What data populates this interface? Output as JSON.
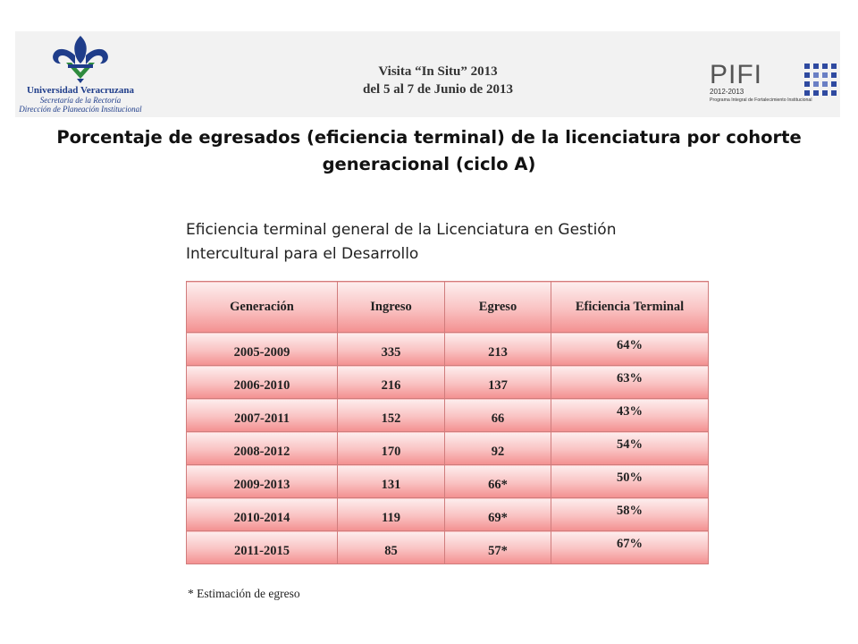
{
  "header": {
    "university": {
      "name": "Universidad Veracruzana",
      "line2": "Secretaría de la Rectoría",
      "line3": "Dirección de Planeación Institucional"
    },
    "visit_title": "Visita “In Situ” 2013",
    "visit_dates": "del 5 al 7 de Junio de 2013",
    "pifi": {
      "word": "PIFI",
      "years": "2012-2013",
      "program": "Programa Integral de Fortalecimiento Institucional"
    }
  },
  "title": "Porcentaje de egresados (eficiencia terminal) de la licenciatura por cohorte generacional (ciclo A)",
  "subtitle_line1": "Eficiencia terminal general de la Licenciatura en Gestión",
  "subtitle_line2": "Intercultural para el Desarrollo",
  "table": {
    "headers": [
      "Generación",
      "Ingreso",
      "Egreso",
      "Eficiencia Terminal"
    ],
    "rows": [
      [
        "2005-2009",
        "335",
        "213",
        "64%"
      ],
      [
        "2006-2010",
        "216",
        "137",
        "63%"
      ],
      [
        "2007-2011",
        "152",
        "66",
        "43%"
      ],
      [
        "2008-2012",
        "170",
        "92",
        "54%"
      ],
      [
        "2009-2013",
        "131",
        "66*",
        "50%"
      ],
      [
        "2010-2014",
        "119",
        "69*",
        "58%"
      ],
      [
        "2011-2015",
        "85",
        "57*",
        "67%"
      ]
    ]
  },
  "footnote": "* Estimación de egreso",
  "colors": {
    "uv_blue": "#1f3d8a",
    "uv_green": "#2e8b3e",
    "table_border": "#d07c7c",
    "table_fill_top": "#fdeeee",
    "table_fill_bottom": "#f39090",
    "pifi_grid": "#2f4aa0"
  }
}
